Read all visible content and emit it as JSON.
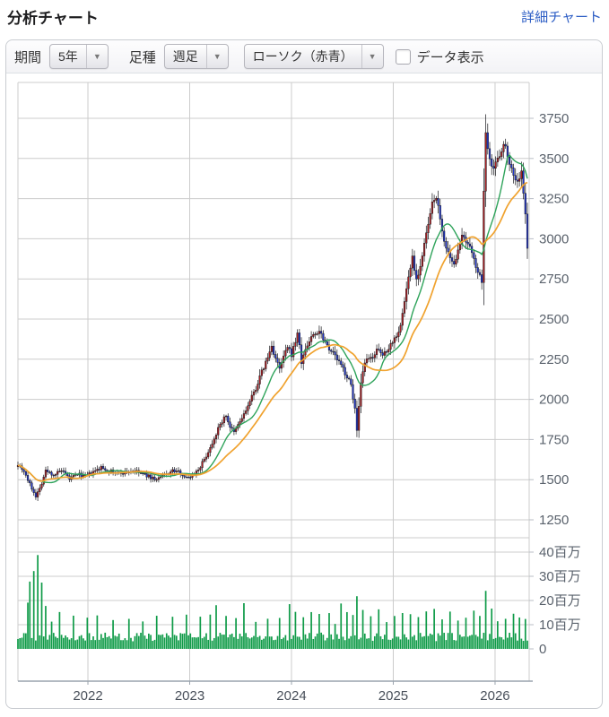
{
  "header": {
    "title": "分析チャート",
    "link_label": "詳細チャート"
  },
  "toolbar": {
    "period_label": "期間",
    "period_value": "5年",
    "bar_type_label": "足種",
    "bar_type_value": "週足",
    "candle_style_value": "ローソク（赤青）",
    "data_display_label": "データ表示",
    "data_display_checked": false
  },
  "colors": {
    "candle_up": "#a81e22",
    "candle_down": "#2135cb",
    "candle_outline": "#17171c",
    "ma_short": "#2ea35a",
    "ma_long": "#f0a22e",
    "volume_bar": "#0f9b48",
    "grid": "#cccccc",
    "axis_line": "#9aa3ad",
    "tick_label": "#5a626c",
    "year_label": "#49505a",
    "link": "#2b5cc4"
  },
  "chart_data": {
    "type": "candlestick",
    "title": "",
    "xlabel": "",
    "ylabel": "",
    "grid": true,
    "legend": "none",
    "panes": [
      "price",
      "volume"
    ],
    "price_axis": {
      "ticks": [
        3750,
        3500,
        3250,
        3000,
        2750,
        2500,
        2250,
        2000,
        1750,
        1500,
        1250
      ],
      "visible_range": [
        1150,
        3980
      ]
    },
    "volume_axis": {
      "tick_labels": [
        "40百万",
        "30百万",
        "20百万",
        "10百万",
        "0"
      ],
      "tick_values": [
        40,
        30,
        20,
        10,
        0
      ],
      "unit_millions": true
    },
    "x_axis": {
      "year_labels": [
        "2022",
        "2023",
        "2024",
        "2025",
        "2026"
      ],
      "year_tick_weeks": [
        35.3,
        86.65,
        138.0,
        189.35,
        240.7
      ],
      "weeks_total": 258
    },
    "series": [
      {
        "name": "weekly-candles",
        "style": "ローソク（赤青）",
        "up_color": "#a81e22",
        "down_color": "#2135cb"
      },
      {
        "name": "ma-short",
        "type": "line",
        "window_weeks": 13,
        "color": "#2ea35a"
      },
      {
        "name": "ma-long",
        "type": "line",
        "window_weeks": 26,
        "color": "#f0a22e"
      }
    ],
    "close_keyframes": [
      [
        0,
        1600
      ],
      [
        3,
        1555
      ],
      [
        6,
        1470
      ],
      [
        9,
        1400
      ],
      [
        11,
        1445
      ],
      [
        14,
        1555
      ],
      [
        18,
        1530
      ],
      [
        22,
        1555
      ],
      [
        26,
        1505
      ],
      [
        30,
        1535
      ],
      [
        34,
        1520
      ],
      [
        38,
        1545
      ],
      [
        42,
        1575
      ],
      [
        46,
        1555
      ],
      [
        50,
        1540
      ],
      [
        54,
        1545
      ],
      [
        58,
        1555
      ],
      [
        62,
        1540
      ],
      [
        66,
        1520
      ],
      [
        70,
        1500
      ],
      [
        74,
        1530
      ],
      [
        78,
        1555
      ],
      [
        82,
        1545
      ],
      [
        85,
        1510
      ],
      [
        88,
        1530
      ],
      [
        91,
        1565
      ],
      [
        94,
        1625
      ],
      [
        97,
        1700
      ],
      [
        100,
        1790
      ],
      [
        103,
        1865
      ],
      [
        105,
        1900
      ],
      [
        107,
        1830
      ],
      [
        109,
        1790
      ],
      [
        111,
        1840
      ],
      [
        114,
        1905
      ],
      [
        117,
        1985
      ],
      [
        120,
        2070
      ],
      [
        123,
        2170
      ],
      [
        126,
        2260
      ],
      [
        128,
        2330
      ],
      [
        130,
        2255
      ],
      [
        132,
        2185
      ],
      [
        134,
        2265
      ],
      [
        136,
        2320
      ],
      [
        138,
        2280
      ],
      [
        140,
        2360
      ],
      [
        141,
        2420
      ],
      [
        143,
        2230
      ],
      [
        145,
        2310
      ],
      [
        148,
        2390
      ],
      [
        152,
        2430
      ],
      [
        156,
        2340
      ],
      [
        160,
        2270
      ],
      [
        164,
        2190
      ],
      [
        168,
        2090
      ],
      [
        170,
        1940
      ],
      [
        171,
        1800
      ],
      [
        173,
        2090
      ],
      [
        175,
        2230
      ],
      [
        178,
        2255
      ],
      [
        181,
        2305
      ],
      [
        184,
        2275
      ],
      [
        187,
        2325
      ],
      [
        190,
        2380
      ],
      [
        193,
        2455
      ],
      [
        196,
        2690
      ],
      [
        199,
        2890
      ],
      [
        201,
        2750
      ],
      [
        203,
        2830
      ],
      [
        205,
        2960
      ],
      [
        207,
        3090
      ],
      [
        209,
        3210
      ],
      [
        211,
        3270
      ],
      [
        213,
        3110
      ],
      [
        216,
        2940
      ],
      [
        218,
        2865
      ],
      [
        220,
        2825
      ],
      [
        222,
        2950
      ],
      [
        224,
        3005
      ],
      [
        226,
        2975
      ],
      [
        228,
        2935
      ],
      [
        230,
        2895
      ],
      [
        232,
        2775
      ],
      [
        234,
        2745
      ],
      [
        235,
        3280
      ],
      [
        236,
        3650
      ],
      [
        238,
        3515
      ],
      [
        240,
        3435
      ],
      [
        242,
        3505
      ],
      [
        244,
        3560
      ],
      [
        246,
        3585
      ],
      [
        248,
        3475
      ],
      [
        250,
        3400
      ],
      [
        252,
        3350
      ],
      [
        254,
        3415
      ],
      [
        256,
        3140
      ],
      [
        257,
        2950
      ]
    ],
    "volume_base_million": 4.2,
    "volume_spikes": [
      [
        5,
        14
      ],
      [
        6,
        22
      ],
      [
        8,
        27
      ],
      [
        10,
        35
      ],
      [
        12,
        23
      ],
      [
        14,
        12
      ],
      [
        17,
        8
      ],
      [
        21,
        10
      ],
      [
        28,
        9
      ],
      [
        35,
        7
      ],
      [
        40,
        8
      ],
      [
        48,
        7
      ],
      [
        56,
        9
      ],
      [
        63,
        8
      ],
      [
        70,
        7
      ],
      [
        78,
        8
      ],
      [
        85,
        10
      ],
      [
        92,
        8
      ],
      [
        97,
        9
      ],
      [
        100,
        13
      ],
      [
        105,
        8
      ],
      [
        110,
        9
      ],
      [
        114,
        13
      ],
      [
        120,
        8
      ],
      [
        126,
        9
      ],
      [
        132,
        7
      ],
      [
        137,
        14
      ],
      [
        140,
        9
      ],
      [
        144,
        8
      ],
      [
        148,
        10
      ],
      [
        152,
        8
      ],
      [
        157,
        9
      ],
      [
        160,
        7
      ],
      [
        163,
        15
      ],
      [
        166,
        9
      ],
      [
        169,
        8
      ],
      [
        171,
        16
      ],
      [
        174,
        10
      ],
      [
        178,
        8
      ],
      [
        182,
        12
      ],
      [
        186,
        7
      ],
      [
        190,
        8
      ],
      [
        194,
        9
      ],
      [
        198,
        10
      ],
      [
        202,
        8
      ],
      [
        206,
        9
      ],
      [
        210,
        13
      ],
      [
        214,
        8
      ],
      [
        218,
        9
      ],
      [
        222,
        7
      ],
      [
        226,
        8
      ],
      [
        230,
        10
      ],
      [
        233,
        9
      ],
      [
        236,
        19
      ],
      [
        239,
        10
      ],
      [
        242,
        8
      ],
      [
        246,
        7
      ],
      [
        250,
        9
      ],
      [
        253,
        8
      ],
      [
        256,
        6
      ]
    ],
    "key_points": {
      "start_close": 1600,
      "low_2021": 1340,
      "crash_low_2024": 1780,
      "peak_high": 3735,
      "final_close": 2950
    }
  }
}
